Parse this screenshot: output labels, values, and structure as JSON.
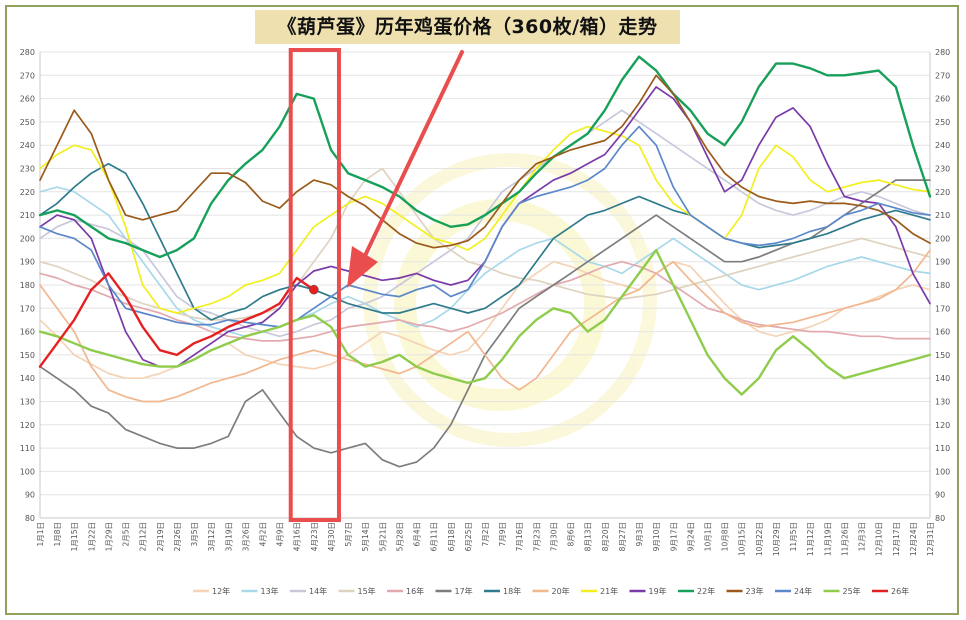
{
  "chart_data": {
    "type": "line",
    "title": "《葫芦蛋》历年鸡蛋价格（360枚/箱）走势",
    "ylim": [
      80,
      280
    ],
    "yticks": [
      80,
      90,
      100,
      110,
      120,
      130,
      140,
      150,
      160,
      170,
      180,
      190,
      200,
      210,
      220,
      230,
      240,
      250,
      260,
      270,
      280
    ],
    "x_ticks": [
      "1月1日",
      "1月8日",
      "1月15日",
      "1月22日",
      "1月29日",
      "2月5日",
      "2月12日",
      "2月19日",
      "2月26日",
      "3月5日",
      "3月12日",
      "3月19日",
      "3月26日",
      "4月2日",
      "4月9日",
      "4月16日",
      "4月23日",
      "4月30日",
      "5月7日",
      "5月14日",
      "5月21日",
      "5月28日",
      "6月4日",
      "6月11日",
      "6月18日",
      "6月25日",
      "7月2日",
      "7月9日",
      "7月16日",
      "7月23日",
      "7月30日",
      "8月6日",
      "8月13日",
      "8月20日",
      "8月27日",
      "9月3日",
      "9月10日",
      "9月17日",
      "9月24日",
      "10月1日",
      "10月8日",
      "10月15日",
      "10月22日",
      "10月29日",
      "11月5日",
      "11月12日",
      "11月19日",
      "11月26日",
      "12月3日",
      "12月10日",
      "12月17日",
      "12月24日",
      "12月31日"
    ],
    "grid": true,
    "legend": "bottom",
    "highlight_weeks": [
      15,
      17
    ],
    "series": [
      {
        "name": "12年",
        "color": "#f5d3b5",
        "values": [
          165,
          158,
          150,
          146,
          142,
          140,
          140,
          142,
          145,
          148,
          152,
          155,
          150,
          148,
          146,
          145,
          144,
          146,
          150,
          155,
          160,
          158,
          155,
          152,
          150,
          152,
          160,
          170,
          180,
          185,
          190,
          188,
          185,
          182,
          180,
          178,
          185,
          190,
          188,
          180,
          172,
          165,
          160,
          158,
          160,
          162,
          165,
          170,
          172,
          175,
          178,
          180,
          178
        ]
      },
      {
        "name": "13年",
        "color": "#a8d8ea",
        "values": [
          220,
          222,
          220,
          215,
          210,
          200,
          190,
          180,
          170,
          165,
          162,
          160,
          158,
          160,
          162,
          165,
          168,
          172,
          175,
          172,
          168,
          165,
          162,
          165,
          170,
          178,
          185,
          190,
          195,
          198,
          200,
          195,
          190,
          188,
          185,
          190,
          195,
          200,
          195,
          190,
          185,
          180,
          178,
          180,
          182,
          185,
          188,
          190,
          192,
          190,
          188,
          186,
          185
        ]
      },
      {
        "name": "14年",
        "color": "#c8c8dc",
        "values": [
          200,
          205,
          208,
          206,
          204,
          200,
          195,
          185,
          175,
          170,
          168,
          165,
          162,
          160,
          158,
          160,
          163,
          165,
          170,
          172,
          175,
          180,
          185,
          190,
          195,
          200,
          210,
          220,
          225,
          230,
          235,
          240,
          245,
          250,
          255,
          250,
          245,
          240,
          235,
          230,
          225,
          220,
          215,
          212,
          210,
          212,
          215,
          218,
          220,
          218,
          215,
          212,
          210
        ]
      },
      {
        "name": "15年",
        "color": "#dfd3c0",
        "values": [
          190,
          188,
          185,
          182,
          178,
          175,
          172,
          170,
          168,
          166,
          165,
          165,
          166,
          168,
          170,
          180,
          190,
          200,
          215,
          225,
          230,
          220,
          210,
          200,
          195,
          190,
          188,
          185,
          183,
          182,
          180,
          178,
          176,
          175,
          174,
          175,
          176,
          178,
          180,
          182,
          184,
          186,
          188,
          190,
          192,
          194,
          196,
          198,
          200,
          198,
          196,
          194,
          192
        ]
      },
      {
        "name": "16年",
        "color": "#e2aaae",
        "values": [
          185,
          183,
          180,
          178,
          175,
          172,
          170,
          168,
          165,
          163,
          160,
          158,
          157,
          156,
          156,
          157,
          158,
          160,
          162,
          163,
          164,
          165,
          163,
          162,
          160,
          162,
          165,
          168,
          172,
          176,
          180,
          182,
          185,
          188,
          190,
          188,
          185,
          180,
          175,
          170,
          168,
          165,
          163,
          162,
          161,
          160,
          160,
          159,
          158,
          158,
          157,
          157,
          157
        ]
      },
      {
        "name": "17年",
        "color": "#7d7d7d",
        "values": [
          145,
          140,
          135,
          128,
          125,
          118,
          115,
          112,
          110,
          110,
          112,
          115,
          130,
          135,
          125,
          115,
          110,
          108,
          110,
          112,
          105,
          102,
          104,
          110,
          120,
          135,
          150,
          160,
          170,
          175,
          180,
          185,
          190,
          195,
          200,
          205,
          210,
          205,
          200,
          195,
          190,
          190,
          192,
          195,
          198,
          200,
          205,
          210,
          215,
          220,
          225,
          225,
          225
        ]
      },
      {
        "name": "18年",
        "color": "#2f7b8c",
        "values": [
          210,
          215,
          222,
          228,
          232,
          228,
          215,
          200,
          185,
          170,
          165,
          168,
          170,
          175,
          178,
          180,
          178,
          175,
          172,
          170,
          168,
          168,
          170,
          172,
          170,
          168,
          170,
          175,
          180,
          190,
          200,
          205,
          210,
          212,
          215,
          218,
          215,
          212,
          210,
          205,
          200,
          198,
          196,
          197,
          198,
          200,
          202,
          205,
          208,
          210,
          212,
          210,
          208
        ]
      },
      {
        "name": "20年",
        "color": "#f2b78f",
        "values": [
          180,
          170,
          160,
          145,
          135,
          132,
          130,
          130,
          132,
          135,
          138,
          140,
          142,
          145,
          148,
          150,
          152,
          150,
          148,
          146,
          144,
          142,
          145,
          150,
          155,
          160,
          150,
          140,
          135,
          140,
          150,
          160,
          165,
          170,
          175,
          178,
          185,
          190,
          182,
          175,
          168,
          164,
          162,
          163,
          164,
          166,
          168,
          170,
          172,
          174,
          178,
          185,
          195
        ]
      },
      {
        "name": "21年",
        "color": "#f2ef1e",
        "values": [
          230,
          236,
          240,
          238,
          225,
          205,
          180,
          170,
          168,
          170,
          172,
          175,
          180,
          182,
          185,
          195,
          205,
          210,
          215,
          218,
          215,
          210,
          205,
          200,
          198,
          195,
          200,
          210,
          220,
          230,
          238,
          245,
          248,
          246,
          244,
          240,
          225,
          215,
          210,
          205,
          200,
          210,
          230,
          240,
          235,
          225,
          220,
          222,
          224,
          225,
          223,
          221,
          220
        ]
      },
      {
        "name": "19年",
        "color": "#7a3aa8",
        "values": [
          205,
          210,
          208,
          200,
          180,
          160,
          148,
          145,
          145,
          150,
          155,
          160,
          162,
          164,
          170,
          180,
          186,
          188,
          186,
          184,
          182,
          183,
          185,
          182,
          180,
          182,
          190,
          205,
          215,
          220,
          225,
          228,
          232,
          236,
          245,
          255,
          265,
          260,
          250,
          235,
          220,
          225,
          240,
          252,
          256,
          248,
          232,
          218,
          216,
          215,
          205,
          185,
          172
        ]
      },
      {
        "name": "22年",
        "color": "#17a05a",
        "values": [
          210,
          212,
          210,
          205,
          200,
          198,
          195,
          192,
          195,
          200,
          215,
          225,
          232,
          238,
          248,
          262,
          260,
          238,
          228,
          225,
          222,
          218,
          212,
          208,
          205,
          206,
          210,
          215,
          220,
          228,
          235,
          240,
          245,
          255,
          268,
          278,
          272,
          262,
          255,
          245,
          240,
          250,
          265,
          275,
          275,
          273,
          270,
          270,
          271,
          272,
          265,
          240,
          218
        ]
      },
      {
        "name": "23年",
        "color": "#9a5a1a",
        "values": [
          225,
          240,
          255,
          245,
          225,
          210,
          208,
          210,
          212,
          220,
          228,
          228,
          224,
          216,
          213,
          220,
          225,
          223,
          218,
          214,
          208,
          202,
          198,
          196,
          197,
          199,
          205,
          215,
          225,
          232,
          235,
          238,
          240,
          242,
          248,
          258,
          270,
          262,
          250,
          238,
          228,
          222,
          218,
          216,
          215,
          216,
          215,
          215,
          214,
          212,
          208,
          202,
          198
        ]
      },
      {
        "name": "24年",
        "color": "#5b88c9",
        "values": [
          205,
          202,
          200,
          195,
          180,
          170,
          168,
          166,
          164,
          163,
          163,
          165,
          164,
          163,
          162,
          165,
          170,
          175,
          180,
          178,
          176,
          175,
          178,
          180,
          175,
          178,
          190,
          205,
          215,
          218,
          220,
          222,
          225,
          230,
          240,
          248,
          240,
          222,
          210,
          205,
          200,
          198,
          197,
          198,
          200,
          203,
          205,
          210,
          212,
          215,
          213,
          211,
          210
        ]
      },
      {
        "name": "25年",
        "color": "#8fcc4b",
        "values": [
          160,
          158,
          155,
          152,
          150,
          148,
          146,
          145,
          145,
          148,
          152,
          155,
          158,
          160,
          162,
          165,
          167,
          162,
          150,
          145,
          147,
          150,
          145,
          142,
          140,
          138,
          140,
          148,
          158,
          165,
          170,
          168,
          160,
          165,
          175,
          185,
          195,
          180,
          165,
          150,
          140,
          133,
          140,
          152,
          158,
          152,
          145,
          140,
          142,
          144,
          146,
          148,
          150
        ]
      },
      {
        "name": "26年",
        "color": "#e52021",
        "values": [
          145,
          155,
          165,
          178,
          185,
          175,
          162,
          152,
          150,
          155,
          158,
          162,
          165,
          168,
          172,
          183,
          178,
          null,
          null,
          null,
          null,
          null,
          null,
          null,
          null,
          null,
          null,
          null,
          null,
          null,
          null,
          null,
          null,
          null,
          null,
          null,
          null,
          null,
          null,
          null,
          null,
          null,
          null,
          null,
          null,
          null,
          null,
          null,
          null,
          null,
          null,
          null,
          null
        ]
      }
    ]
  }
}
